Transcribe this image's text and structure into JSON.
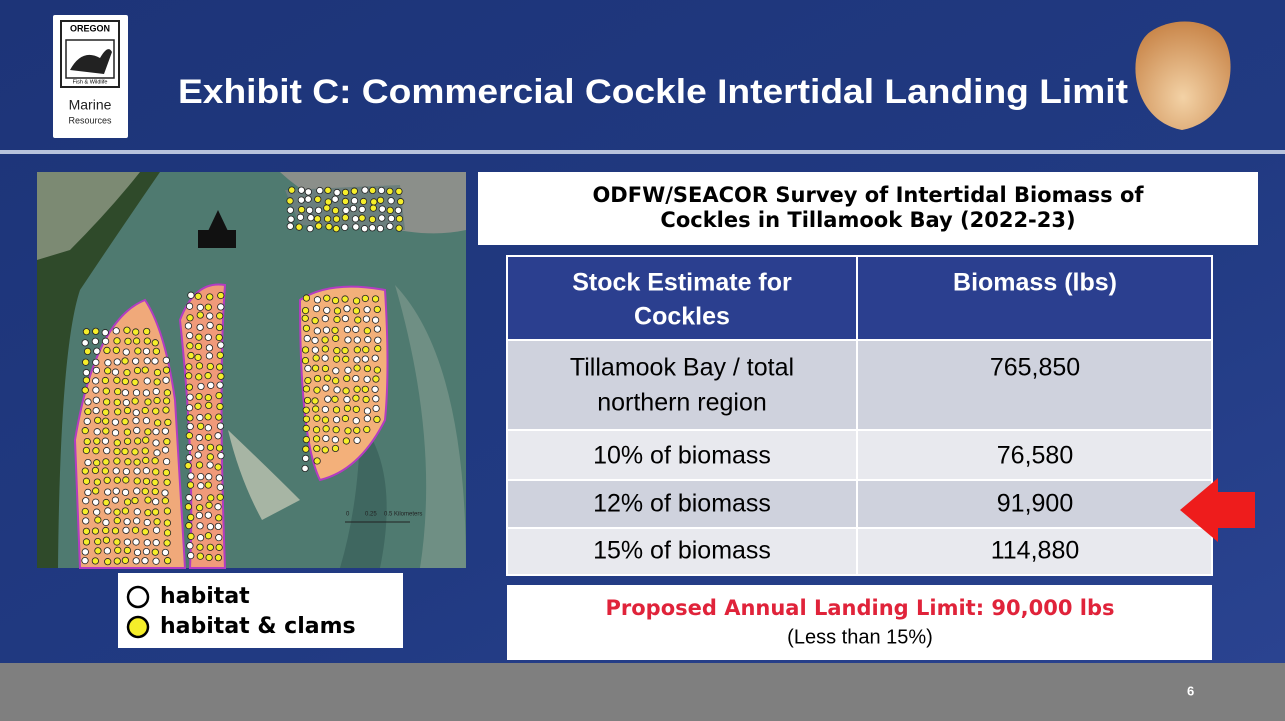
{
  "header": {
    "title": "Exhibit C: Commercial Cockle Intertidal Landing Limit",
    "logo": {
      "agency": "OREGON",
      "sub": "Fish & Wildlife",
      "program": "Marine",
      "program_sub": "Resources"
    }
  },
  "map": {
    "scale_labels": [
      "0",
      "0.25",
      "0.5 Kilometers"
    ],
    "legend": [
      "habitat",
      "habitat & clams"
    ]
  },
  "table": {
    "title_lines": [
      "ODFW/SEACOR Survey of Intertidal Biomass of",
      "Cockles in Tillamook Bay (2022-23)"
    ],
    "header": [
      [
        "Stock Estimate for",
        "Cockles"
      ],
      "Biomass (lbs)"
    ],
    "rows": [
      [
        [
          "Tillamook Bay / total",
          "northern region"
        ],
        "765,850"
      ],
      [
        "10% of biomass",
        "76,580"
      ],
      [
        "12% of biomass",
        "91,900"
      ],
      [
        "15% of biomass",
        "114,880"
      ]
    ]
  },
  "callout": {
    "headline": "Proposed Annual Landing Limit: 90,000 lbs",
    "note": "(Less than 15%)"
  },
  "footer": {
    "page_number": "6"
  }
}
